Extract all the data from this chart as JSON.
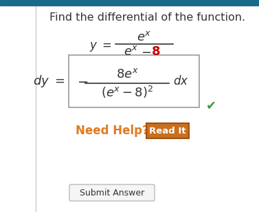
{
  "title": "Find the differential of the function.",
  "title_color": "#333333",
  "title_fontsize": 11.5,
  "bg_color": "#ffffff",
  "top_bar_color": "#1a6a8a",
  "left_border_color": "#cccccc",
  "need_help_text": "Need Help?",
  "need_help_color": "#e07b20",
  "read_it_text": "Read It",
  "read_it_bg": "#c87020",
  "read_it_border": "#a05010",
  "read_it_color": "#ffffff",
  "submit_text": "Submit Answer",
  "submit_border": "#bbbbbb",
  "submit_bg": "#f5f5f5",
  "submit_color": "#333333",
  "check_color": "#3a9a3a",
  "red_8_color": "#cc0000",
  "box_border_color": "#999999",
  "dark_text": "#333333"
}
